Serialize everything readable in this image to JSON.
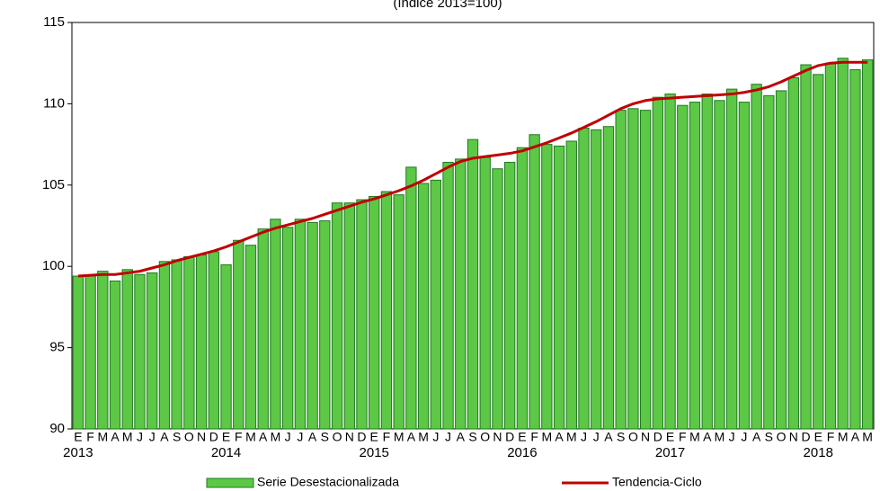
{
  "chart_data": {
    "type": "bar_line",
    "subtitle": "(índice 2013=100)",
    "categories": [
      "E",
      "F",
      "M",
      "A",
      "M",
      "J",
      "J",
      "A",
      "S",
      "O",
      "N",
      "D",
      "E",
      "F",
      "M",
      "A",
      "M",
      "J",
      "J",
      "A",
      "S",
      "O",
      "N",
      "D",
      "E",
      "F",
      "M",
      "A",
      "M",
      "J",
      "J",
      "A",
      "S",
      "O",
      "N",
      "D",
      "E",
      "F",
      "M",
      "A",
      "M",
      "J",
      "J",
      "A",
      "S",
      "O",
      "N",
      "D",
      "E",
      "F",
      "M",
      "A",
      "M",
      "J",
      "J",
      "A",
      "S",
      "O",
      "N",
      "D",
      "E",
      "F",
      "M",
      "A",
      "M"
    ],
    "years": [
      "2013",
      "2014",
      "2015",
      "2016",
      "2017",
      "2018"
    ],
    "series": [
      {
        "name": "Serie Desestacionalizada",
        "color": "#5cc846",
        "kind": "bar",
        "values": [
          99.4,
          99.4,
          99.7,
          99.1,
          99.8,
          99.5,
          99.6,
          100.3,
          100.4,
          100.6,
          100.7,
          100.9,
          100.1,
          101.6,
          101.3,
          102.3,
          102.9,
          102.4,
          102.9,
          102.7,
          102.8,
          103.9,
          103.9,
          104.1,
          104.3,
          104.6,
          104.4,
          106.1,
          105.1,
          105.3,
          106.4,
          106.6,
          107.8,
          106.7,
          106.0,
          106.4,
          107.3,
          108.1,
          107.5,
          107.4,
          107.7,
          108.5,
          108.4,
          108.6,
          109.6,
          109.7,
          109.6,
          110.4,
          110.6,
          109.9,
          110.1,
          110.6,
          110.2,
          110.9,
          110.1,
          111.2,
          110.5,
          110.8,
          111.6,
          112.4,
          111.8,
          112.5,
          112.8,
          112.1,
          112.7
        ]
      },
      {
        "name": "Tendencia-Ciclo",
        "color": "#c00000",
        "kind": "line",
        "values": [
          99.4,
          99.45,
          99.5,
          99.5,
          99.6,
          99.7,
          99.9,
          100.1,
          100.35,
          100.55,
          100.75,
          100.95,
          101.2,
          101.5,
          101.8,
          102.1,
          102.35,
          102.55,
          102.75,
          102.95,
          103.2,
          103.45,
          103.7,
          103.95,
          104.15,
          104.4,
          104.65,
          104.95,
          105.3,
          105.7,
          106.1,
          106.45,
          106.65,
          106.75,
          106.85,
          106.95,
          107.1,
          107.35,
          107.6,
          107.9,
          108.2,
          108.55,
          108.9,
          109.3,
          109.7,
          110.0,
          110.2,
          110.3,
          110.35,
          110.4,
          110.45,
          110.5,
          110.55,
          110.6,
          110.7,
          110.85,
          111.05,
          111.35,
          111.7,
          112.05,
          112.35,
          112.5,
          112.55,
          112.55,
          112.55
        ]
      }
    ],
    "ylim": [
      90,
      115
    ],
    "yticks": [
      90,
      95,
      100,
      105,
      110,
      115
    ],
    "grid": false
  }
}
